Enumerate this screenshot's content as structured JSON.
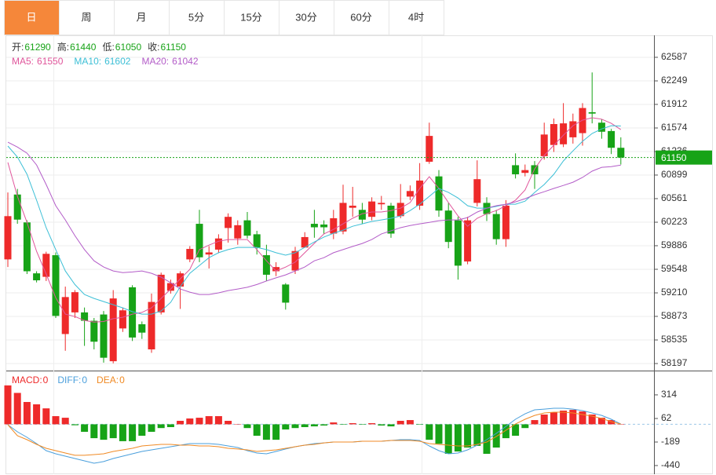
{
  "tabs": [
    "日",
    "周",
    "月",
    "5分",
    "15分",
    "30分",
    "60分",
    "4时"
  ],
  "chart_data": [
    {
      "type": "candlestick",
      "ohlc_legend": [
        {
          "label": "开:",
          "value": 61290
        },
        {
          "label": "高:",
          "value": 61440
        },
        {
          "label": "低:",
          "value": 61050
        },
        {
          "label": "收:",
          "value": 61150
        }
      ],
      "value_color": "#17a317",
      "up_color": "#ee2a2a",
      "down_color": "#17a317",
      "last_price_color": "#17a317",
      "grid": true,
      "open": [
        59690,
        60620,
        60220,
        59490,
        59440,
        59750,
        58620,
        58930,
        58930,
        58810,
        58900,
        58230,
        58700,
        59290,
        58760,
        58400,
        58930,
        59240,
        59300,
        59690,
        60200,
        59760,
        59830,
        60140,
        59990,
        60250,
        60050,
        59750,
        59520,
        59330,
        59530,
        59860,
        60200,
        60190,
        60060,
        60090,
        60430,
        60400,
        60300,
        60480,
        60460,
        60310,
        60590,
        60460,
        61090,
        60880,
        60390,
        60250,
        59660,
        60500,
        60500,
        60340,
        59980,
        61040,
        60930,
        61040,
        61170,
        61330,
        61340,
        61440,
        61500,
        61800,
        61650,
        61530,
        61290
      ],
      "high": [
        60650,
        60700,
        60250,
        59520,
        59800,
        59790,
        59300,
        59250,
        59000,
        58850,
        58950,
        59250,
        59000,
        59320,
        58800,
        59200,
        59500,
        59400,
        59520,
        59880,
        60400,
        59880,
        60050,
        60350,
        60250,
        60370,
        60100,
        59900,
        59650,
        59350,
        59870,
        60080,
        60400,
        60250,
        60400,
        60760,
        60730,
        60500,
        60580,
        60600,
        60500,
        60770,
        60750,
        61070,
        61650,
        60970,
        60500,
        60300,
        60300,
        61110,
        60580,
        60400,
        60540,
        61210,
        61050,
        61100,
        61650,
        61710,
        61930,
        61780,
        61930,
        62370,
        61700,
        61560,
        61440
      ],
      "low": [
        59580,
        60200,
        59480,
        59360,
        59380,
        58850,
        58380,
        58850,
        58450,
        58400,
        58210,
        58200,
        58650,
        58520,
        58550,
        58350,
        58900,
        59200,
        58980,
        59650,
        59650,
        59560,
        59780,
        59930,
        59900,
        59990,
        59760,
        59380,
        59450,
        58970,
        59480,
        59900,
        60000,
        60050,
        59980,
        60050,
        60300,
        60200,
        60250,
        60400,
        60000,
        60280,
        60540,
        60400,
        61060,
        60300,
        59850,
        59400,
        59620,
        60450,
        60240,
        59900,
        59870,
        60850,
        60880,
        60700,
        61120,
        61230,
        61300,
        61350,
        61320,
        61640,
        61420,
        61200,
        61050
      ],
      "close": [
        60310,
        60260,
        59520,
        59390,
        59770,
        58880,
        59150,
        59220,
        58810,
        58510,
        58280,
        59130,
        58960,
        58570,
        58640,
        59080,
        59470,
        59350,
        59490,
        59840,
        59720,
        59790,
        59990,
        60300,
        60180,
        60030,
        59860,
        59470,
        59580,
        59070,
        59810,
        60010,
        60150,
        60150,
        60280,
        60500,
        60460,
        60260,
        60520,
        60500,
        60060,
        60500,
        60670,
        60820,
        61460,
        60390,
        59940,
        59600,
        60250,
        60840,
        60340,
        59980,
        60460,
        60910,
        60970,
        60910,
        61480,
        61630,
        61640,
        61670,
        61860,
        61780,
        61520,
        61290,
        61150
      ],
      "series": [
        {
          "name": "MA5:",
          "color": "#e0559b",
          "values": [
            61080,
            60594,
            60220,
            59806,
            59480,
            59140,
            58905,
            58870,
            58815,
            58792,
            58800,
            58840,
            58860,
            58905,
            58930,
            58995,
            59130,
            59265,
            59412,
            59547,
            59830,
            59895,
            59950,
            59975,
            59975,
            59975,
            59830,
            59670,
            59524,
            59580,
            59650,
            59785,
            59920,
            60055,
            60120,
            60200,
            60280,
            60345,
            60370,
            60370,
            60390,
            60425,
            60505,
            60707,
            60876,
            60707,
            60505,
            60312,
            60165,
            60280,
            60345,
            60390,
            60460,
            60538,
            60685,
            60988,
            61180,
            61326,
            61470,
            61607,
            61686,
            61720,
            61700,
            61640,
            61550
          ]
        },
        {
          "name": "MA10:",
          "color": "#3cbfd6",
          "values": [
            61315,
            61157,
            60910,
            60538,
            60144,
            59830,
            59524,
            59330,
            59187,
            59130,
            59085,
            59040,
            58995,
            58940,
            58905,
            58905,
            58950,
            59074,
            59299,
            59490,
            59603,
            59715,
            59785,
            59830,
            59862,
            59862,
            59862,
            59830,
            59785,
            59750,
            59785,
            59862,
            59940,
            60010,
            60065,
            60110,
            60165,
            60200,
            60235,
            60256,
            60280,
            60312,
            60390,
            60481,
            60594,
            60707,
            60650,
            60570,
            60460,
            60425,
            60425,
            60450,
            60481,
            60481,
            60525,
            60650,
            60763,
            60910,
            61101,
            61245,
            61382,
            61495,
            61560,
            61607,
            61602
          ]
        },
        {
          "name": "MA20:",
          "color": "#b35cc8",
          "values": [
            61370,
            61300,
            61213,
            61044,
            60763,
            60460,
            60256,
            60031,
            59830,
            59670,
            59581,
            59524,
            59500,
            59510,
            59524,
            59490,
            59435,
            59355,
            59265,
            59220,
            59187,
            59187,
            59210,
            59243,
            59265,
            59290,
            59330,
            59380,
            59425,
            59468,
            59524,
            59581,
            59670,
            59715,
            59785,
            59830,
            59875,
            59918,
            59975,
            60055,
            60100,
            60144,
            60175,
            60200,
            60220,
            60245,
            60256,
            60256,
            60290,
            60369,
            60425,
            60460,
            60481,
            60515,
            60560,
            60616,
            60660,
            60707,
            60750,
            60796,
            60865,
            60955,
            61010,
            61020,
            61042
          ]
        }
      ],
      "ylim": [
        58096,
        62902
      ],
      "yticks": [
        58197,
        58535,
        58873,
        59210,
        59548,
        59886,
        60223,
        60561,
        60899,
        61236,
        61574,
        61912,
        62249,
        62587
      ]
    },
    {
      "type": "macd",
      "series": [
        {
          "name": "MACD:",
          "legend_value": 0,
          "kind": "bar",
          "color": "#ee2a2a",
          "down_color": "#17a317",
          "values": [
            415,
            335,
            238,
            213,
            170,
            87,
            70,
            -10,
            -80,
            -148,
            -165,
            -148,
            -180,
            -180,
            -122,
            -80,
            -40,
            -30,
            37,
            62,
            70,
            87,
            87,
            37,
            3,
            -40,
            -122,
            -165,
            -165,
            -55,
            -40,
            -30,
            -22,
            -13,
            20,
            -5,
            12,
            -5,
            12,
            -13,
            -22,
            37,
            45,
            -5,
            -165,
            -208,
            -315,
            -290,
            -248,
            -230,
            -315,
            -248,
            -148,
            -122,
            -40,
            45,
            104,
            129,
            146,
            154,
            137,
            104,
            70,
            45,
            3
          ]
        },
        {
          "name": "DIFF:",
          "legend_value": 0,
          "kind": "line",
          "color": "#4a9fdc",
          "values": [
            -5,
            -80,
            -139,
            -206,
            -281,
            -315,
            -340,
            -365,
            -390,
            -415,
            -398,
            -365,
            -340,
            -315,
            -290,
            -273,
            -256,
            -239,
            -223,
            -206,
            -206,
            -206,
            -214,
            -231,
            -248,
            -281,
            -306,
            -315,
            -290,
            -264,
            -239,
            -223,
            -206,
            -198,
            -189,
            -189,
            -189,
            -181,
            -181,
            -181,
            -172,
            -164,
            -164,
            -172,
            -231,
            -281,
            -315,
            -306,
            -273,
            -223,
            -164,
            -97,
            -22,
            54,
            112,
            154,
            162,
            171,
            171,
            162,
            146,
            121,
            95,
            54,
            3
          ]
        },
        {
          "name": "DEA:",
          "legend_value": 0,
          "kind": "line",
          "color": "#f08a24",
          "values": [
            -5,
            -122,
            -164,
            -214,
            -256,
            -281,
            -306,
            -331,
            -331,
            -323,
            -315,
            -290,
            -273,
            -256,
            -231,
            -223,
            -214,
            -214,
            -223,
            -223,
            -231,
            -231,
            -239,
            -256,
            -264,
            -273,
            -290,
            -281,
            -273,
            -256,
            -239,
            -223,
            -214,
            -198,
            -189,
            -189,
            -189,
            -181,
            -181,
            -181,
            -172,
            -172,
            -172,
            -181,
            -206,
            -214,
            -223,
            -231,
            -231,
            -214,
            -189,
            -130,
            -64,
            3,
            54,
            95,
            121,
            129,
            129,
            121,
            104,
            87,
            62,
            28,
            3
          ]
        }
      ],
      "ylim": [
        -499,
        548
      ],
      "yticks": [
        314,
        62,
        -189,
        -440
      ]
    }
  ]
}
